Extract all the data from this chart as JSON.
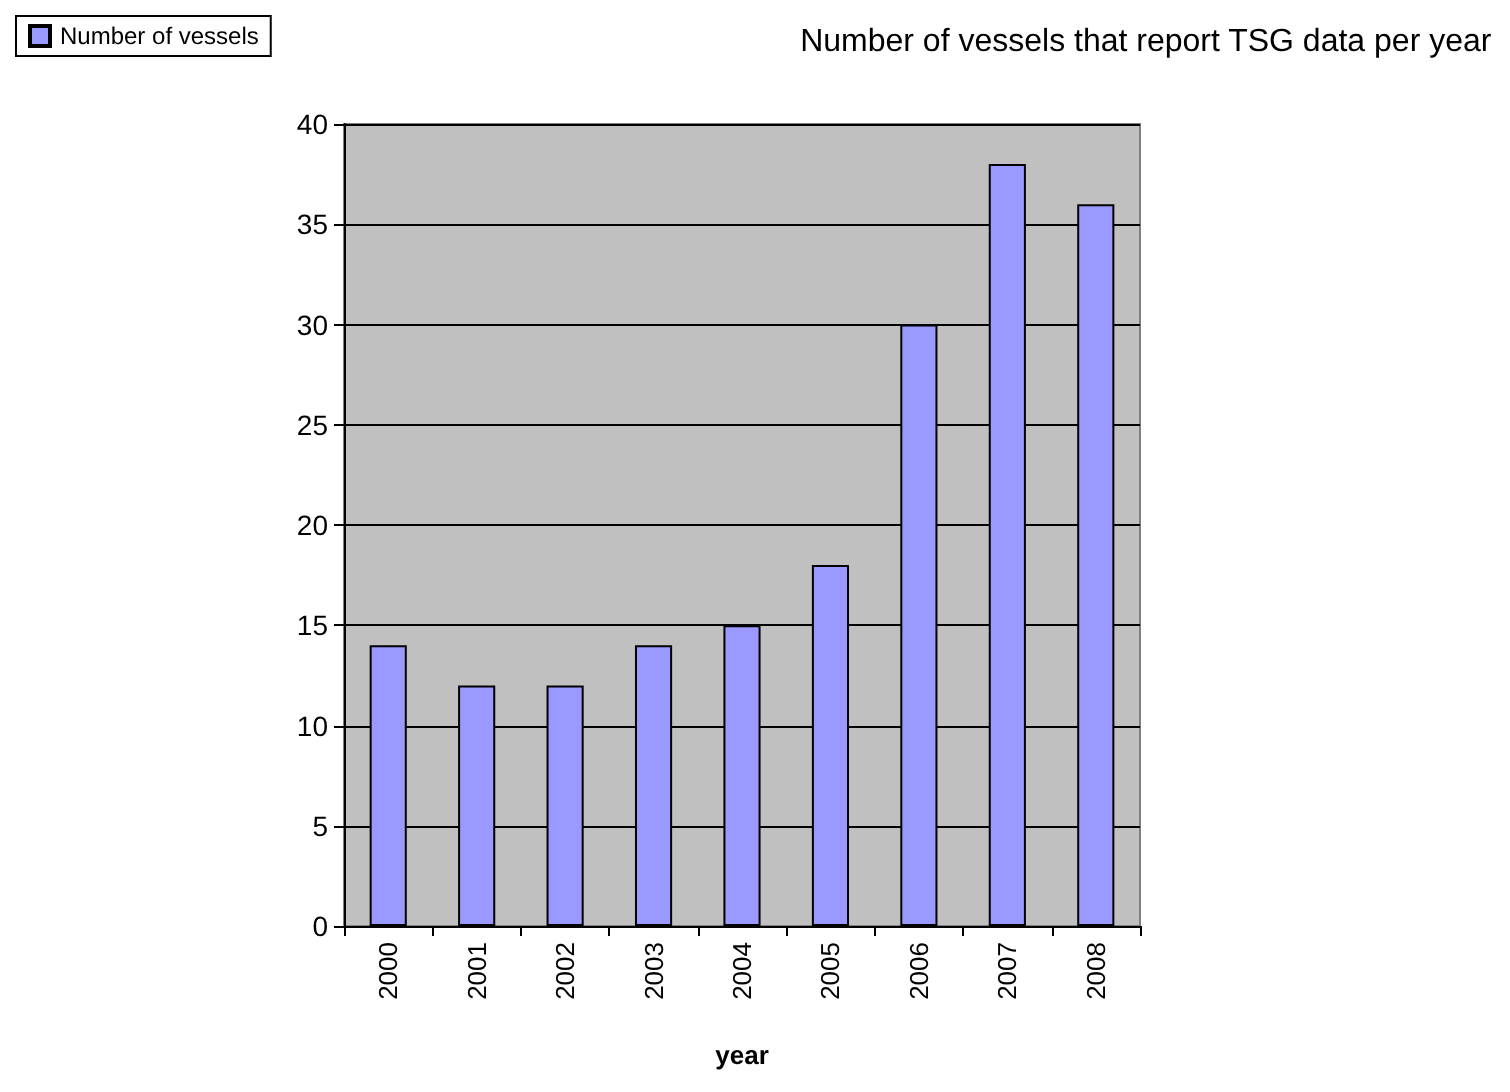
{
  "chart_data": {
    "type": "bar",
    "title": "Number of vessels that report TSG data per year",
    "xlabel": "year",
    "categories": [
      "2000",
      "2001",
      "2002",
      "2003",
      "2004",
      "2005",
      "2006",
      "2007",
      "2008"
    ],
    "series": [
      {
        "name": "Number of vessels",
        "color": "#9999ff",
        "values": [
          14,
          12,
          12,
          14,
          15,
          18,
          30,
          38,
          36
        ]
      }
    ],
    "ylim": [
      0,
      40
    ],
    "yticks": [
      0,
      5,
      10,
      15,
      20,
      25,
      30,
      35,
      40
    ],
    "grid": "y",
    "legend": "top left"
  }
}
